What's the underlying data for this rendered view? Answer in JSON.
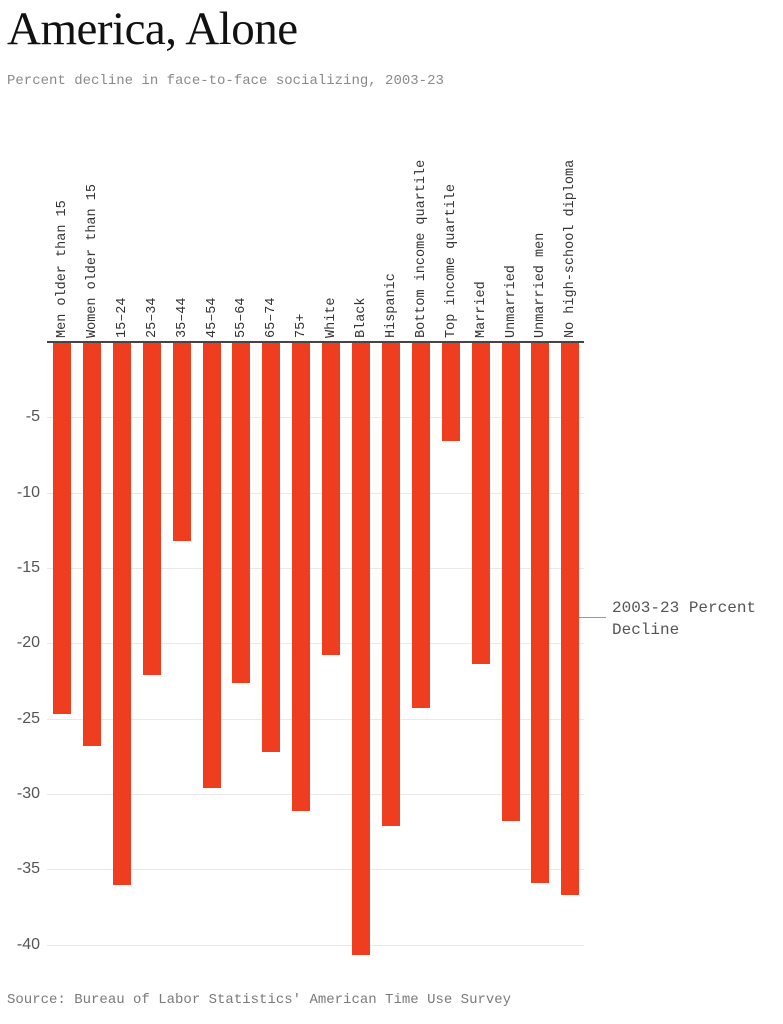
{
  "header": {
    "title": "America, Alone",
    "subtitle": "Percent decline in face-to-face socializing, 2003-23"
  },
  "legend": {
    "label": "2003-23 Percent Decline"
  },
  "footer": {
    "source": "Source: Bureau of Labor Statistics' American Time Use Survey"
  },
  "colors": {
    "bar": "#ef3d20",
    "axis": "#444444",
    "grid": "#e9e7ec"
  },
  "chart_data": {
    "type": "bar",
    "title": "America, Alone",
    "subtitle": "Percent decline in face-to-face socializing, 2003-23",
    "xlabel": "",
    "ylabel": "",
    "ylim": [
      -41,
      0
    ],
    "yticks": [
      -5,
      -10,
      -15,
      -20,
      -25,
      -30,
      -35,
      -40
    ],
    "grid": true,
    "legend_position": "right",
    "categories": [
      "Men older than 15",
      "Women older than 15",
      "15–24",
      "25–34",
      "35–44",
      "45–54",
      "55–64",
      "65–74",
      "75+",
      "White",
      "Black",
      "Hispanic",
      "Bottom income quartile",
      "Top income quartile",
      "Married",
      "Unmarried",
      "Unmarried men",
      "No high-school diploma"
    ],
    "series": [
      {
        "name": "2003-23 Percent Decline",
        "values": [
          -24.7,
          -26.8,
          -36.0,
          -22.1,
          -13.2,
          -29.6,
          -22.6,
          -27.2,
          -31.1,
          -20.8,
          -40.7,
          -32.1,
          -24.3,
          -6.6,
          -21.4,
          -31.8,
          -35.9,
          -36.7
        ]
      }
    ],
    "source": "Source: Bureau of Labor Statistics' American Time Use Survey"
  }
}
